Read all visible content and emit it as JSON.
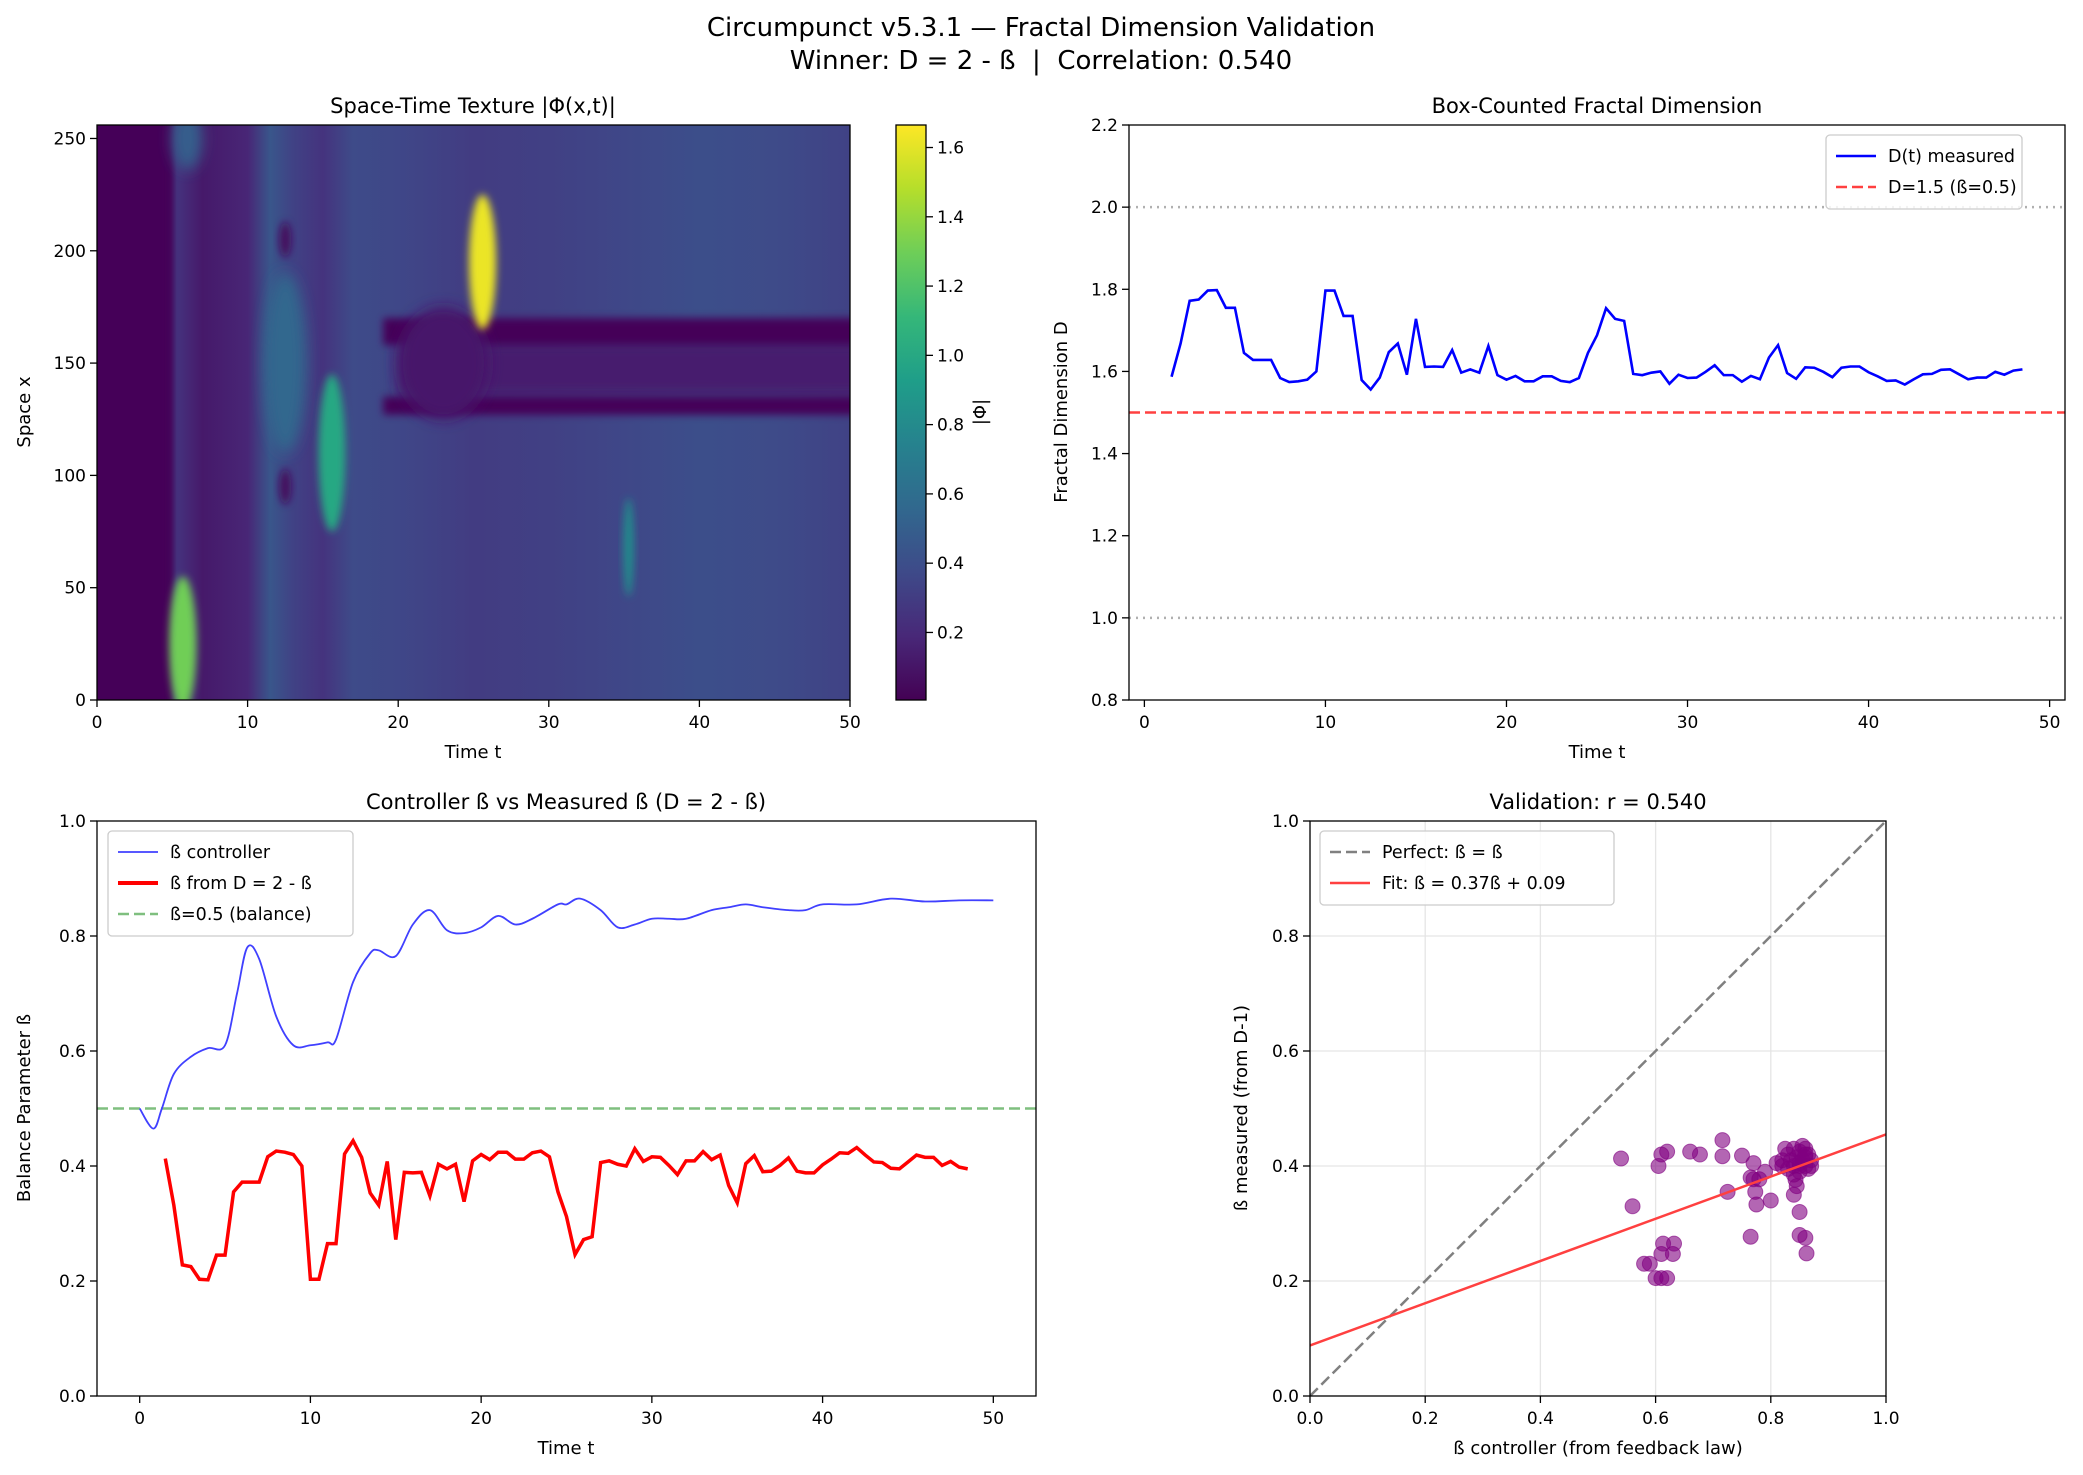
{
  "figure": {
    "title_line1": "Circumpunct v5.3.1 — Fractal Dimension Validation",
    "title_line2": "Winner: D = 2 - ß  |  Correlation: 0.540"
  },
  "chart_data": [
    {
      "type": "heatmap",
      "title": "Space-Time Texture |Φ(x,t)|",
      "xlabel": "Time t",
      "ylabel": "Space x",
      "xlim": [
        0,
        50
      ],
      "ylim": [
        0,
        256
      ],
      "xticks": [
        "0",
        "10",
        "20",
        "30",
        "40",
        "50"
      ],
      "yticks": [
        "0",
        "50",
        "100",
        "150",
        "200",
        "250"
      ],
      "colormap": "viridis",
      "colorbar": {
        "label": "|Φ|",
        "range": [
          0.005,
          1.665
        ],
        "ticks": [
          "0.2",
          "0.4",
          "0.6",
          "0.8",
          "1.0",
          "1.2",
          "1.4",
          "1.6"
        ]
      }
    },
    {
      "type": "line",
      "title": "Box-Counted Fractal Dimension",
      "xlabel": "Time t",
      "ylabel": "Fractal Dimension D",
      "xlim": [
        -0.85,
        50.85
      ],
      "ylim": [
        0.8,
        2.2
      ],
      "xticks": [
        "0",
        "10",
        "20",
        "30",
        "40",
        "50"
      ],
      "yticks": [
        "0.8",
        "1.0",
        "1.2",
        "1.4",
        "1.6",
        "1.8",
        "2.0",
        "2.2"
      ],
      "legend": "top-right",
      "reference_lines": [
        {
          "y": 1.5,
          "name": "D=1.5 (ß=0.5)",
          "color": "#ff4040",
          "style": "dashed"
        },
        {
          "y": 2.0,
          "color": "#b0b0b0",
          "style": "dotted"
        },
        {
          "y": 1.0,
          "color": "#b0b0b0",
          "style": "dotted"
        }
      ],
      "series": [
        {
          "name": "D(t) measured",
          "color": "#0000ff",
          "x": [
            1.5,
            2,
            2.5,
            3,
            3.5,
            4,
            4.5,
            5,
            5.5,
            6,
            6.5,
            7,
            7.5,
            8,
            8.5,
            9,
            9.5,
            10,
            10.5,
            11,
            11.5,
            12,
            12.5,
            13,
            13.5,
            14,
            14.5,
            15,
            15.5,
            16,
            16.5,
            17,
            17.5,
            18,
            18.5,
            19,
            19.5,
            20,
            20.5,
            21,
            21.5,
            22,
            22.5,
            23,
            23.5,
            24,
            24.5,
            25,
            25.5,
            26,
            26.5,
            27,
            27.5,
            28,
            28.5,
            29,
            29.5,
            30,
            30.5,
            31,
            31.5,
            32,
            32.5,
            33,
            33.5,
            34,
            34.5,
            35,
            35.5,
            36,
            36.5,
            37,
            37.5,
            38,
            38.5,
            39,
            39.5,
            40,
            40.5,
            41,
            41.5,
            42,
            42.5,
            43,
            43.5,
            44,
            44.5,
            45,
            45.5,
            46,
            46.5,
            47,
            47.5,
            48,
            48.5
          ],
          "y": [
            1.587,
            1.668,
            1.772,
            1.775,
            1.797,
            1.798,
            1.755,
            1.755,
            1.645,
            1.628,
            1.628,
            1.628,
            1.584,
            1.574,
            1.576,
            1.58,
            1.6,
            1.797,
            1.797,
            1.735,
            1.735,
            1.579,
            1.556,
            1.585,
            1.647,
            1.668,
            1.592,
            1.728,
            1.611,
            1.612,
            1.611,
            1.652,
            1.597,
            1.605,
            1.597,
            1.662,
            1.591,
            1.58,
            1.589,
            1.576,
            1.576,
            1.588,
            1.588,
            1.577,
            1.574,
            1.584,
            1.645,
            1.688,
            1.754,
            1.728,
            1.723,
            1.594,
            1.591,
            1.597,
            1.6,
            1.57,
            1.592,
            1.584,
            1.585,
            1.599,
            1.615,
            1.591,
            1.591,
            1.575,
            1.589,
            1.581,
            1.634,
            1.664,
            1.596,
            1.582,
            1.61,
            1.609,
            1.599,
            1.586,
            1.609,
            1.612,
            1.612,
            1.598,
            1.588,
            1.577,
            1.578,
            1.568,
            1.581,
            1.593,
            1.594,
            1.604,
            1.605,
            1.593,
            1.581,
            1.585,
            1.585,
            1.599,
            1.592,
            1.602,
            1.605
          ]
        }
      ]
    },
    {
      "type": "line",
      "title": "Controller ß vs Measured ß (D = 2 - ß)",
      "xlabel": "Time t",
      "ylabel": "Balance Parameter ß",
      "xlim": [
        -2.5,
        52.5
      ],
      "ylim": [
        0,
        1
      ],
      "xticks": [
        "0",
        "10",
        "20",
        "30",
        "40",
        "50"
      ],
      "yticks": [
        "0.0",
        "0.2",
        "0.4",
        "0.6",
        "0.8",
        "1.0"
      ],
      "legend": "top-left",
      "reference_lines": [
        {
          "y": 0.5,
          "name": "ß=0.5 (balance)",
          "color": "#7fbf7f",
          "style": "dashed"
        }
      ],
      "series": [
        {
          "name": "ß controller",
          "color": "#4040ff",
          "x": [
            0,
            0.8,
            1.3,
            2,
            3,
            4,
            5,
            5.7,
            6.3,
            7,
            8,
            9,
            10,
            11,
            11.5,
            12.5,
            13.5,
            14,
            15,
            16,
            17,
            18,
            19,
            20,
            21,
            22,
            23,
            24.5,
            25,
            25.8,
            27,
            28,
            29,
            30,
            31,
            32,
            33.5,
            34.5,
            35.5,
            36.5,
            38,
            39,
            40,
            42,
            44,
            46,
            48,
            50
          ],
          "y": [
            0.5,
            0.465,
            0.5,
            0.56,
            0.59,
            0.605,
            0.61,
            0.7,
            0.78,
            0.76,
            0.66,
            0.61,
            0.61,
            0.615,
            0.62,
            0.72,
            0.77,
            0.775,
            0.765,
            0.82,
            0.845,
            0.81,
            0.805,
            0.815,
            0.835,
            0.82,
            0.83,
            0.855,
            0.855,
            0.865,
            0.845,
            0.815,
            0.82,
            0.83,
            0.83,
            0.83,
            0.845,
            0.85,
            0.855,
            0.85,
            0.845,
            0.845,
            0.855,
            0.855,
            0.865,
            0.86,
            0.862,
            0.862
          ]
        },
        {
          "name": "ß from D = 2 - ß",
          "color": "#ff0000",
          "x": [
            1.5,
            2,
            2.5,
            3,
            3.5,
            4,
            4.5,
            5,
            5.5,
            6,
            6.5,
            7,
            7.5,
            8,
            8.5,
            9,
            9.5,
            10,
            10.5,
            11,
            11.5,
            12,
            12.5,
            13,
            13.5,
            14,
            14.5,
            15,
            15.5,
            16,
            16.5,
            17,
            17.5,
            18,
            18.5,
            19,
            19.5,
            20,
            20.5,
            21,
            21.5,
            22,
            22.5,
            23,
            23.5,
            24,
            24.5,
            25,
            25.5,
            26,
            26.5,
            27,
            27.5,
            28,
            28.5,
            29,
            29.5,
            30,
            30.5,
            31,
            31.5,
            32,
            32.5,
            33,
            33.5,
            34,
            34.5,
            35,
            35.5,
            36,
            36.5,
            37,
            37.5,
            38,
            38.5,
            39,
            39.5,
            40,
            40.5,
            41,
            41.5,
            42,
            42.5,
            43,
            43.5,
            44,
            44.5,
            45,
            45.5,
            46,
            46.5,
            47,
            47.5,
            48,
            48.5
          ],
          "y": [
            0.413,
            0.332,
            0.228,
            0.225,
            0.203,
            0.202,
            0.245,
            0.245,
            0.355,
            0.372,
            0.372,
            0.372,
            0.416,
            0.426,
            0.424,
            0.42,
            0.4,
            0.203,
            0.203,
            0.265,
            0.265,
            0.421,
            0.444,
            0.415,
            0.353,
            0.332,
            0.408,
            0.272,
            0.389,
            0.388,
            0.389,
            0.348,
            0.403,
            0.395,
            0.403,
            0.338,
            0.409,
            0.42,
            0.411,
            0.424,
            0.424,
            0.412,
            0.412,
            0.423,
            0.426,
            0.416,
            0.355,
            0.312,
            0.246,
            0.272,
            0.277,
            0.406,
            0.409,
            0.403,
            0.4,
            0.43,
            0.408,
            0.416,
            0.415,
            0.401,
            0.385,
            0.409,
            0.409,
            0.425,
            0.411,
            0.419,
            0.366,
            0.336,
            0.404,
            0.418,
            0.39,
            0.391,
            0.401,
            0.414,
            0.391,
            0.388,
            0.388,
            0.402,
            0.412,
            0.423,
            0.422,
            0.432,
            0.419,
            0.407,
            0.406,
            0.396,
            0.395,
            0.407,
            0.419,
            0.415,
            0.415,
            0.401,
            0.408,
            0.398,
            0.395
          ]
        }
      ]
    },
    {
      "type": "scatter",
      "title": "Validation: r = 0.540",
      "xlabel": "ß controller (from feedback law)",
      "ylabel": "ß measured (from D-1)",
      "xlim": [
        0,
        1
      ],
      "ylim": [
        0,
        1
      ],
      "xticks": [
        "0.0",
        "0.2",
        "0.4",
        "0.6",
        "0.8",
        "1.0"
      ],
      "yticks": [
        "0.0",
        "0.2",
        "0.4",
        "0.6",
        "0.8",
        "1.0"
      ],
      "grid": true,
      "legend": "top-left",
      "point_color": "#800080",
      "lines": [
        {
          "name": "Perfect: ß = ß",
          "color": "#808080",
          "style": "dashed",
          "x": [
            0,
            1
          ],
          "y": [
            0,
            1
          ]
        },
        {
          "name": "Fit: ß = 0.37ß + 0.09",
          "color": "#ff4040",
          "style": "solid",
          "x": [
            0,
            1
          ],
          "y": [
            0.088,
            0.455
          ]
        }
      ],
      "points": [
        [
          0.54,
          0.413
        ],
        [
          0.56,
          0.33
        ],
        [
          0.58,
          0.23
        ],
        [
          0.59,
          0.23
        ],
        [
          0.6,
          0.205
        ],
        [
          0.61,
          0.205
        ],
        [
          0.62,
          0.205
        ],
        [
          0.61,
          0.247
        ],
        [
          0.613,
          0.265
        ],
        [
          0.63,
          0.247
        ],
        [
          0.632,
          0.265
        ],
        [
          0.605,
          0.4
        ],
        [
          0.61,
          0.42
        ],
        [
          0.62,
          0.425
        ],
        [
          0.66,
          0.425
        ],
        [
          0.677,
          0.42
        ],
        [
          0.716,
          0.445
        ],
        [
          0.716,
          0.417
        ],
        [
          0.725,
          0.355
        ],
        [
          0.75,
          0.418
        ],
        [
          0.765,
          0.38
        ],
        [
          0.765,
          0.277
        ],
        [
          0.77,
          0.405
        ],
        [
          0.77,
          0.377
        ],
        [
          0.773,
          0.355
        ],
        [
          0.775,
          0.333
        ],
        [
          0.78,
          0.377
        ],
        [
          0.8,
          0.34
        ],
        [
          0.79,
          0.39
        ],
        [
          0.84,
          0.35
        ],
        [
          0.845,
          0.365
        ],
        [
          0.85,
          0.32
        ],
        [
          0.85,
          0.28
        ],
        [
          0.86,
          0.275
        ],
        [
          0.862,
          0.248
        ],
        [
          0.843,
          0.376
        ],
        [
          0.85,
          0.4
        ],
        [
          0.82,
          0.41
        ],
        [
          0.83,
          0.42
        ],
        [
          0.84,
          0.43
        ],
        [
          0.85,
          0.425
        ],
        [
          0.86,
          0.43
        ],
        [
          0.865,
          0.42
        ],
        [
          0.87,
          0.41
        ],
        [
          0.86,
          0.4
        ],
        [
          0.85,
          0.39
        ],
        [
          0.84,
          0.4
        ],
        [
          0.83,
          0.395
        ],
        [
          0.82,
          0.4
        ],
        [
          0.81,
          0.405
        ],
        [
          0.835,
          0.41
        ],
        [
          0.845,
          0.415
        ],
        [
          0.855,
          0.41
        ],
        [
          0.86,
          0.415
        ],
        [
          0.84,
          0.385
        ],
        [
          0.85,
          0.405
        ],
        [
          0.865,
          0.395
        ],
        [
          0.87,
          0.4
        ],
        [
          0.825,
          0.43
        ],
        [
          0.855,
          0.435
        ],
        [
          0.86,
          0.42
        ]
      ]
    }
  ]
}
